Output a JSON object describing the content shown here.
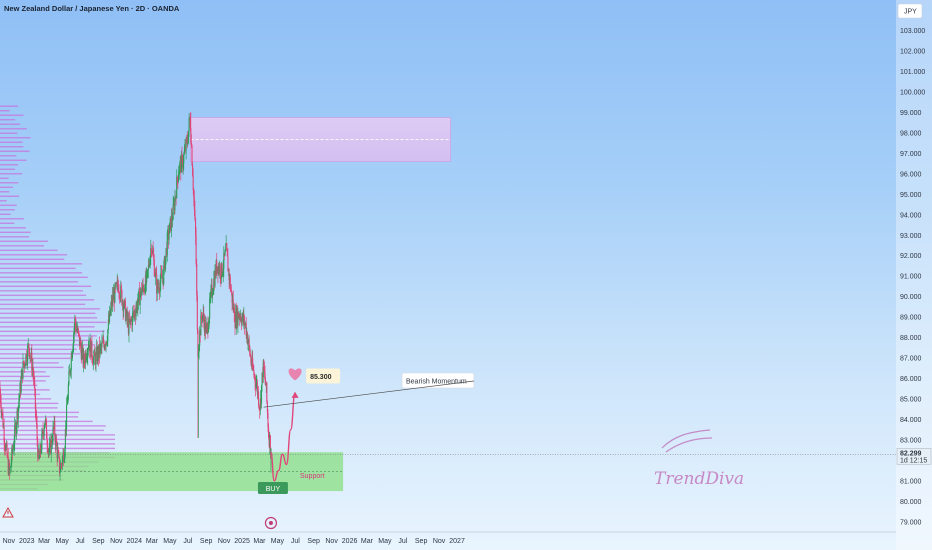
{
  "header": {
    "title": "New Zealand Dollar / Japanese Yen · 2D · OANDA",
    "currency": "JPY"
  },
  "colors": {
    "up": "#2e9e5b",
    "down": "#e0467a",
    "support_zone": "#8fe08a",
    "resistance_zone": "#e3c4f2",
    "support_text": "#d6397a",
    "buy_badge": "#3b9a5b",
    "heart": "#e784b0",
    "price_tag": "#e7eff8"
  },
  "annotations": {
    "bearish_label": "Bearish Momentum",
    "support_label": "Support",
    "buy_label": "BUY",
    "target_label": "85.300",
    "watermark": "TrendDiva",
    "current_price": "82.299",
    "countdown": "1d 12:15"
  },
  "chart_data": {
    "type": "candlestick",
    "title": "New Zealand Dollar / Japanese Yen · 2D · OANDA",
    "y_axis_label": "JPY",
    "ylim": [
      78.5,
      104.3
    ],
    "y_ticks": [
      "103.000",
      "102.000",
      "101.000",
      "100.000",
      "99.000",
      "98.000",
      "97.000",
      "96.000",
      "95.000",
      "94.000",
      "93.000",
      "92.000",
      "91.000",
      "90.000",
      "89.000",
      "88.000",
      "87.000",
      "86.000",
      "85.000",
      "84.000",
      "83.000",
      "82.000",
      "81.000",
      "80.000",
      "79.000"
    ],
    "x_ticks": [
      "Nov",
      "2023",
      "Mar",
      "May",
      "Jul",
      "Sep",
      "Nov",
      "2024",
      "Mar",
      "May",
      "Jul",
      "Sep",
      "Nov",
      "2025",
      "Mar",
      "May",
      "Jul",
      "Sep",
      "Nov",
      "2026",
      "Mar",
      "May",
      "Jul",
      "Sep",
      "Nov",
      "2027"
    ],
    "x_start": "2022-10-02",
    "bar_period_days": 2,
    "price_path": [
      [
        "2022-10-02",
        85.6
      ],
      [
        "2022-10-20",
        83.0
      ],
      [
        "2022-11-05",
        81.3
      ],
      [
        "2022-11-25",
        83.5
      ],
      [
        "2022-12-20",
        86.5
      ],
      [
        "2023-01-10",
        87.6
      ],
      [
        "2023-01-25",
        86.3
      ],
      [
        "2023-02-12",
        81.8
      ],
      [
        "2023-03-05",
        84.0
      ],
      [
        "2023-03-20",
        82.3
      ],
      [
        "2023-04-05",
        83.6
      ],
      [
        "2023-04-25",
        81.5
      ],
      [
        "2023-05-10",
        82.5
      ],
      [
        "2023-05-25",
        85.8
      ],
      [
        "2023-06-15",
        88.8
      ],
      [
        "2023-06-28",
        88.0
      ],
      [
        "2023-07-15",
        86.8
      ],
      [
        "2023-08-01",
        87.8
      ],
      [
        "2023-08-20",
        86.9
      ],
      [
        "2023-09-10",
        87.4
      ],
      [
        "2023-10-01",
        88.0
      ],
      [
        "2023-10-20",
        89.8
      ],
      [
        "2023-11-10",
        90.6
      ],
      [
        "2023-11-25",
        89.8
      ],
      [
        "2023-12-15",
        88.5
      ],
      [
        "2024-01-05",
        89.3
      ],
      [
        "2024-01-25",
        90.2
      ],
      [
        "2024-02-15",
        90.8
      ],
      [
        "2024-03-01",
        92.6
      ],
      [
        "2024-03-20",
        90.4
      ],
      [
        "2024-04-10",
        91.0
      ],
      [
        "2024-04-25",
        92.8
      ],
      [
        "2024-05-15",
        94.2
      ],
      [
        "2024-06-01",
        96.2
      ],
      [
        "2024-06-15",
        96.6
      ],
      [
        "2024-07-01",
        97.6
      ],
      [
        "2024-07-10",
        98.8
      ],
      [
        "2024-07-18",
        96.5
      ],
      [
        "2024-07-30",
        92.5
      ],
      [
        "2024-08-05",
        87.3
      ],
      [
        "2024-08-20",
        89.2
      ],
      [
        "2024-09-05",
        88.2
      ],
      [
        "2024-09-20",
        90.1
      ],
      [
        "2024-10-10",
        91.6
      ],
      [
        "2024-10-25",
        91.2
      ],
      [
        "2024-11-10",
        92.2
      ],
      [
        "2024-11-25",
        90.4
      ],
      [
        "2024-12-10",
        88.9
      ],
      [
        "2024-12-25",
        89.2
      ],
      [
        "2025-01-15",
        88.6
      ],
      [
        "2025-02-05",
        86.6
      ],
      [
        "2025-02-20",
        85.8
      ],
      [
        "2025-03-05",
        84.6
      ],
      [
        "2025-03-15",
        86.6
      ],
      [
        "2025-03-25",
        85.6
      ],
      [
        "2025-04-03",
        83.3
      ],
      [
        "2025-04-09",
        82.8
      ]
    ],
    "wick_lows": [
      [
        "2024-08-05",
        83.1
      ],
      [
        "2025-04-09",
        81.4
      ]
    ],
    "wick_highs": [
      [
        "2024-07-10",
        99.0
      ],
      [
        "2024-11-10",
        92.4
      ]
    ],
    "zones": [
      {
        "name": "resistance",
        "x_start": "2024-07-10",
        "x_end": "2026-12-10",
        "y_low": 96.6,
        "y_high": 98.75
      },
      {
        "name": "support",
        "x_start": "2022-10-02",
        "x_end": "2025-12-10",
        "y_low": 80.5,
        "y_high": 82.4
      }
    ],
    "current_price": 82.299,
    "projection": [
      [
        "2025-04-09",
        82.4
      ],
      [
        "2025-04-20",
        81.0
      ],
      [
        "2025-05-05",
        81.5
      ],
      [
        "2025-05-18",
        82.3
      ],
      [
        "2025-06-01",
        81.8
      ],
      [
        "2025-06-15",
        83.5
      ],
      [
        "2025-06-30",
        85.3
      ]
    ],
    "target": 85.3,
    "bearish_arrow_to": [
      "2025-03-15",
      84.6
    ]
  }
}
